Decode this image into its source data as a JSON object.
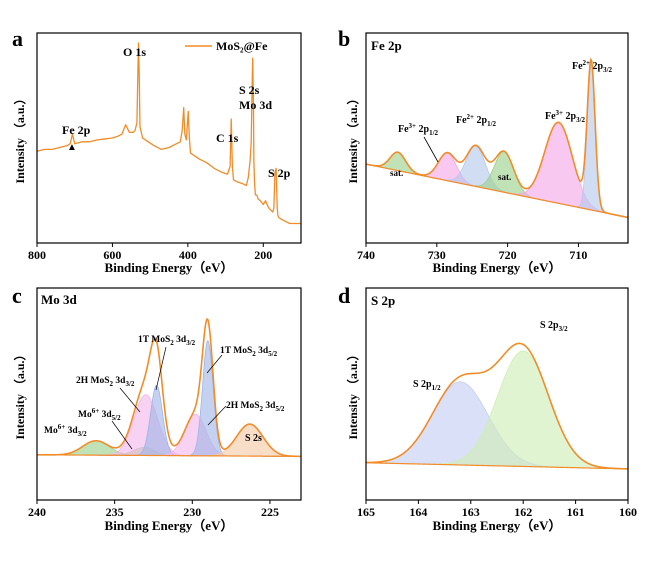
{
  "chart_data": [
    {
      "id": "a",
      "type": "line",
      "panel_letter": "a",
      "legend": "MoS₂@Fe",
      "legend_position": "top-right",
      "xlabel": "Binding Energy（eV）",
      "ylabel": "Intensity （a.u.）",
      "xlim": [
        800,
        100
      ],
      "ylim": [
        0,
        100
      ],
      "x_ticks": [
        800,
        600,
        400,
        200
      ],
      "series": [
        {
          "name": "MoS₂@Fe",
          "color": "#f28c28",
          "x": [
            800,
            780,
            760,
            740,
            720,
            712,
            706,
            700,
            680,
            660,
            640,
            620,
            600,
            585,
            575,
            565,
            555,
            545,
            540,
            535,
            533,
            531,
            529,
            527,
            520,
            505,
            490,
            470,
            450,
            430,
            420,
            415,
            411,
            408,
            404,
            402,
            399,
            396,
            393,
            385,
            370,
            350,
            330,
            310,
            295,
            288,
            285,
            282,
            279,
            270,
            255,
            245,
            240,
            235,
            232,
            229,
            228,
            226,
            225,
            223,
            221,
            219,
            217,
            214,
            208,
            200,
            194,
            190,
            185,
            180,
            175,
            172,
            169,
            166,
            163,
            161,
            158,
            150,
            140,
            130,
            120,
            105,
            100
          ],
          "y": [
            43,
            44,
            44,
            45,
            46,
            47,
            52,
            47,
            48,
            48,
            49,
            49.5,
            50,
            51,
            52,
            57,
            53,
            53,
            54,
            58,
            80,
            100,
            84,
            56,
            50,
            48,
            46,
            44,
            45,
            47,
            48,
            54,
            66,
            52,
            49,
            55,
            64,
            50,
            42,
            41,
            39,
            37,
            34,
            32,
            31,
            35,
            60,
            35,
            28,
            27,
            26,
            25,
            29,
            38,
            48,
            84,
            92,
            66,
            38,
            26,
            20,
            20,
            20,
            18,
            17,
            15,
            17,
            15,
            13,
            12,
            11,
            13,
            32,
            34,
            13,
            9,
            8,
            7,
            6,
            5,
            5,
            5,
            5
          ]
        }
      ],
      "annotations": [
        {
          "text": "O 1s",
          "x": 530,
          "y": 100
        },
        {
          "text": "Fe 2p",
          "x": 712,
          "y": 52
        },
        {
          "text": "C 1s",
          "x": 285,
          "y": 60
        },
        {
          "text": "S 2s",
          "x": 228,
          "y": 92
        },
        {
          "text": "Mo 3d",
          "x": 228,
          "y": 92
        },
        {
          "text": "S 2p",
          "x": 163,
          "y": 34
        }
      ]
    },
    {
      "id": "b",
      "type": "area",
      "panel_letter": "b",
      "title": "Fe 2p",
      "xlabel": "Binding Energy（eV）",
      "ylabel": "Intensity （a.u.）",
      "xlim": [
        740,
        703
      ],
      "ylim": [
        0,
        100
      ],
      "x_ticks": [
        740,
        730,
        720,
        710
      ],
      "background": {
        "x": [
          740,
          703
        ],
        "y": [
          32,
          3
        ]
      },
      "envelope_color": "#f28c28",
      "components": [
        {
          "name": "sat.",
          "center": 735.5,
          "fwhm": 2.6,
          "height": 10,
          "color": "#9bd08a"
        },
        {
          "name": "Fe³⁺ 2p₁/₂",
          "center": 728.5,
          "fwhm": 3.0,
          "height": 15,
          "color": "#f4a6e6"
        },
        {
          "name": "Fe²⁺ 2p₁/₂",
          "center": 724.5,
          "fwhm": 3.2,
          "height": 22,
          "color": "#b5c8ec"
        },
        {
          "name": "sat.",
          "center": 720.5,
          "fwhm": 3.2,
          "height": 22,
          "color": "#9bd08a"
        },
        {
          "name": "Fe³⁺ 2p₃/₂",
          "center": 712.8,
          "fwhm": 4.6,
          "height": 44,
          "color": "#f4a6e6"
        },
        {
          "name": "Fe²⁺ 2p₃/₂",
          "center": 708.2,
          "fwhm": 1.3,
          "height": 79,
          "color": "#b5c8ec"
        }
      ]
    },
    {
      "id": "c",
      "type": "area",
      "panel_letter": "c",
      "title": "Mo 3d",
      "xlabel": "Binding Energy（eV）",
      "ylabel": "Intensity （a.u.）",
      "xlim": [
        240,
        223
      ],
      "ylim": [
        0,
        100
      ],
      "x_ticks": [
        240,
        235,
        230,
        225
      ],
      "background": {
        "x": [
          240,
          223
        ],
        "y": [
          2,
          1
        ]
      },
      "envelope_color": "#f28c28",
      "components": [
        {
          "name": "Mo⁶⁺ 3d₃/₂",
          "center": 236.2,
          "fwhm": 2.0,
          "height": 9,
          "color": "#9bd08a"
        },
        {
          "name": "Mo⁶⁺ 3d₅/₂",
          "center": 233.1,
          "fwhm": 1.6,
          "height": 5,
          "color": "#9bd08a"
        },
        {
          "name": "2H MoS₂ 3d₃/₂",
          "center": 233.0,
          "fwhm": 1.8,
          "height": 38,
          "color": "#f4b6ea"
        },
        {
          "name": "1T MoS₂ 3d₃/₂",
          "center": 232.3,
          "fwhm": 0.9,
          "height": 44,
          "color": "#9fb4e6"
        },
        {
          "name": "2H MoS₂ 3d₅/₂",
          "center": 229.8,
          "fwhm": 1.6,
          "height": 26,
          "color": "#f4b6ea"
        },
        {
          "name": "1T MoS₂ 3d₅/₂",
          "center": 229.0,
          "fwhm": 0.8,
          "height": 72,
          "color": "#9fb4e6"
        },
        {
          "name": "S 2s",
          "center": 226.3,
          "fwhm": 2.0,
          "height": 20,
          "color": "#f6c9a4"
        }
      ]
    },
    {
      "id": "d",
      "type": "area",
      "panel_letter": "d",
      "title": "S 2p",
      "xlabel": "Binding Energy（eV）",
      "ylabel": "Intensity （a.u.）",
      "xlim": [
        165,
        160
      ],
      "ylim": [
        0,
        100
      ],
      "x_ticks": [
        165,
        164,
        163,
        162,
        161,
        160
      ],
      "background": {
        "x": [
          165,
          160
        ],
        "y": [
          6,
          2
        ]
      },
      "envelope_color": "#f28c28",
      "components": [
        {
          "name": "S 2p₁/₂",
          "center": 163.2,
          "fwhm": 1.25,
          "height": 54,
          "color": "#c4cdf2"
        },
        {
          "name": "S 2p₃/₂",
          "center": 162.0,
          "fwhm": 1.15,
          "height": 75,
          "color": "#cfeeb4"
        }
      ]
    }
  ],
  "labels": {
    "a": {
      "letter": "a",
      "legend": "MoS₂@Fe",
      "xlabel": "Binding Energy（eV）",
      "ylabel": "Intensity （a.u.）",
      "peaks": {
        "o1s": "O 1s",
        "fe2p": "Fe 2p",
        "c1s": "C 1s",
        "s2s": "S 2s",
        "mo3d": "Mo 3d",
        "s2p": "S 2p"
      }
    },
    "b": {
      "letter": "b",
      "title": "Fe 2p",
      "xlabel": "Binding Energy（eV）",
      "ylabel": "Intensity （a.u.）"
    },
    "c": {
      "letter": "c",
      "title": "Mo 3d",
      "xlabel": "Binding Energy（eV）",
      "ylabel": "Intensity （a.u.）"
    },
    "d": {
      "letter": "d",
      "title": "S 2p",
      "xlabel": "Binding Energy（eV）",
      "ylabel": "Intensity （a.u.）"
    }
  }
}
